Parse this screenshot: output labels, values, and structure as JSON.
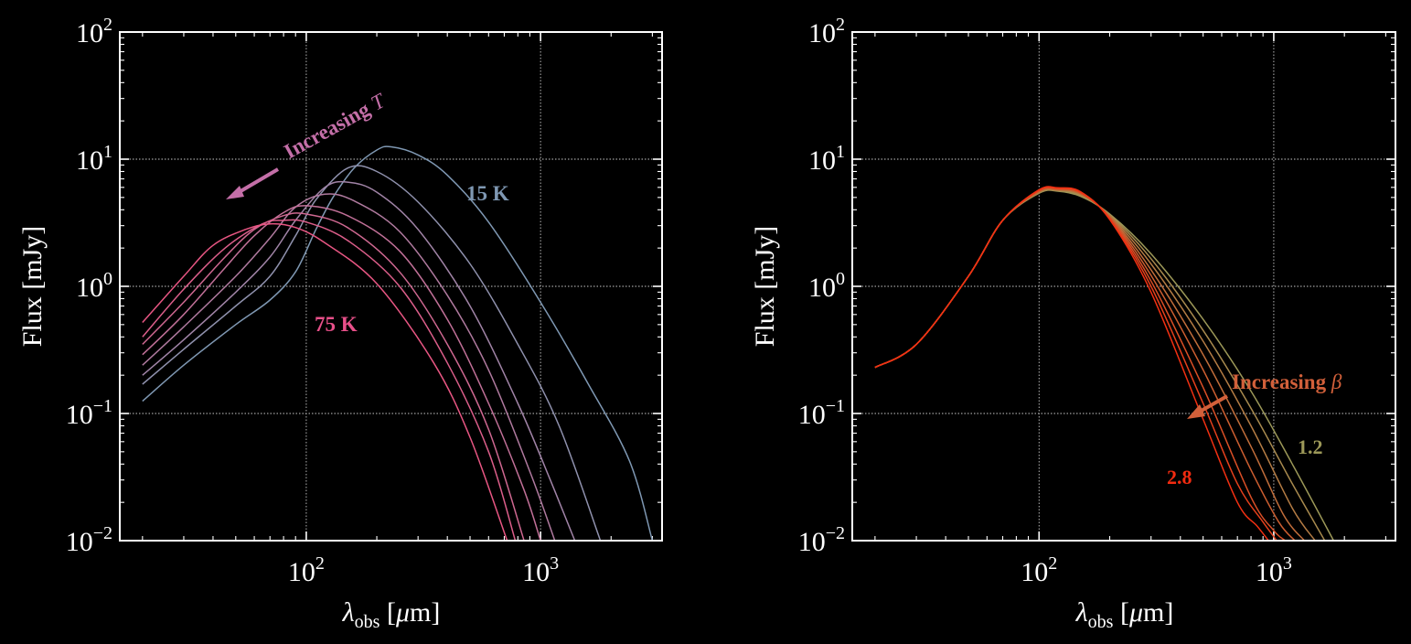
{
  "chart_data": [
    {
      "type": "line",
      "xlabel": "λobs [μm]",
      "ylabel": "Flux [mJy]",
      "xscale": "log",
      "yscale": "log",
      "xlim": [
        16,
        3300
      ],
      "ylim": [
        0.01,
        100
      ],
      "grid": true,
      "x_ticks": [
        {
          "value": 100,
          "base": "10",
          "exp": "2"
        },
        {
          "value": 1000,
          "base": "10",
          "exp": "3"
        }
      ],
      "y_ticks": [
        {
          "value": 100,
          "base": "10",
          "exp": "2"
        },
        {
          "value": 10,
          "base": "10",
          "exp": "1"
        },
        {
          "value": 1,
          "base": "10",
          "exp": "0"
        },
        {
          "value": 0.1,
          "base": "10",
          "exp": "−1"
        },
        {
          "value": 0.01,
          "base": "10",
          "exp": "−2"
        }
      ],
      "series": [
        {
          "color": "#7f98b3",
          "x": [
            20,
            30,
            50,
            70,
            90,
            110,
            130,
            160,
            200,
            230,
            300,
            400,
            600,
            1000,
            1600,
            2400,
            3000
          ],
          "y": [
            0.125,
            0.24,
            0.5,
            0.78,
            1.3,
            2.8,
            5.0,
            8.5,
            11.8,
            12.5,
            10.8,
            7.5,
            3.2,
            0.75,
            0.17,
            0.042,
            0.01
          ]
        },
        {
          "color": "#8f91ad",
          "x": [
            20,
            30,
            50,
            70,
            90,
            110,
            150,
            200,
            300,
            500,
            800,
            1200,
            1800
          ],
          "y": [
            0.17,
            0.32,
            0.7,
            1.2,
            2.5,
            4.8,
            8.5,
            8.0,
            4.6,
            1.5,
            0.35,
            0.08,
            0.01
          ]
        },
        {
          "color": "#a184a7",
          "x": [
            20,
            30,
            50,
            70,
            90,
            120,
            150,
            200,
            300,
            500,
            800,
            1100,
            1400
          ],
          "y": [
            0.2,
            0.38,
            0.9,
            1.7,
            3.3,
            6.0,
            6.6,
            5.5,
            2.8,
            0.7,
            0.12,
            0.03,
            0.01
          ]
        },
        {
          "color": "#b07a9f",
          "x": [
            20,
            30,
            50,
            70,
            90,
            120,
            160,
            250,
            400,
            600,
            900,
            1150
          ],
          "y": [
            0.24,
            0.48,
            1.2,
            2.4,
            4.2,
            5.3,
            4.7,
            2.7,
            0.85,
            0.22,
            0.035,
            0.01
          ]
        },
        {
          "color": "#c17098",
          "x": [
            20,
            30,
            45,
            60,
            80,
            100,
            150,
            250,
            400,
            600,
            850,
            1000
          ],
          "y": [
            0.29,
            0.6,
            1.4,
            2.5,
            3.8,
            4.3,
            3.6,
            1.9,
            0.55,
            0.12,
            0.025,
            0.01
          ]
        },
        {
          "color": "#cf6891",
          "x": [
            20,
            30,
            45,
            60,
            80,
            100,
            150,
            250,
            400,
            600,
            850
          ],
          "y": [
            0.35,
            0.75,
            1.7,
            2.8,
            3.6,
            3.7,
            2.9,
            1.3,
            0.35,
            0.075,
            0.01
          ]
        },
        {
          "color": "#dc5e8a",
          "x": [
            20,
            30,
            45,
            65,
            80,
            100,
            150,
            250,
            400,
            600,
            780
          ],
          "y": [
            0.4,
            0.95,
            2.0,
            3.1,
            3.3,
            3.2,
            2.3,
            1.0,
            0.25,
            0.05,
            0.01
          ]
        },
        {
          "color": "#e85683",
          "x": [
            20,
            30,
            40,
            55,
            70,
            90,
            120,
            200,
            350,
            500,
            720
          ],
          "y": [
            0.52,
            1.2,
            2.1,
            2.8,
            3.1,
            2.9,
            2.2,
            1.05,
            0.25,
            0.065,
            0.01
          ]
        }
      ],
      "annotations": [
        {
          "text": "Increasing ",
          "math": "T",
          "color": "#c46fa8"
        },
        {
          "text": "15 K",
          "color": "#7f98b3"
        },
        {
          "text": "75 K",
          "color": "#e8508a"
        }
      ]
    },
    {
      "type": "line",
      "xlabel": "λobs [μm]",
      "ylabel": "Flux [mJy]",
      "xscale": "log",
      "yscale": "log",
      "xlim": [
        16,
        3300
      ],
      "ylim": [
        0.01,
        100
      ],
      "grid": true,
      "x_ticks": [
        {
          "value": 100,
          "base": "10",
          "exp": "2"
        },
        {
          "value": 1000,
          "base": "10",
          "exp": "3"
        }
      ],
      "y_ticks": [
        {
          "value": 100,
          "base": "10",
          "exp": "2"
        },
        {
          "value": 10,
          "base": "10",
          "exp": "1"
        },
        {
          "value": 1,
          "base": "10",
          "exp": "0"
        },
        {
          "value": 0.1,
          "base": "10",
          "exp": "−1"
        },
        {
          "value": 0.01,
          "base": "10",
          "exp": "−2"
        }
      ],
      "series": [
        {
          "color": "#9c9858",
          "x": [
            20,
            30,
            50,
            70,
            100,
            120,
            150,
            200,
            300,
            500,
            800,
            1200,
            1800
          ],
          "y": [
            0.23,
            0.35,
            1.2,
            3.3,
            5.4,
            5.6,
            5.1,
            3.7,
            1.8,
            0.55,
            0.15,
            0.04,
            0.01
          ]
        },
        {
          "color": "#a88a4e",
          "x": [
            20,
            30,
            50,
            70,
            100,
            120,
            150,
            200,
            300,
            500,
            800,
            1200,
            1650
          ],
          "y": [
            0.23,
            0.35,
            1.2,
            3.3,
            5.45,
            5.65,
            5.2,
            3.65,
            1.65,
            0.45,
            0.11,
            0.028,
            0.01
          ]
        },
        {
          "color": "#b47c44",
          "x": [
            20,
            30,
            50,
            70,
            100,
            120,
            150,
            200,
            300,
            500,
            800,
            1200,
            1500
          ],
          "y": [
            0.23,
            0.35,
            1.2,
            3.3,
            5.5,
            5.7,
            5.3,
            3.6,
            1.5,
            0.37,
            0.08,
            0.018,
            0.01
          ]
        },
        {
          "color": "#c16d3a",
          "x": [
            20,
            30,
            50,
            70,
            100,
            120,
            150,
            200,
            300,
            500,
            800,
            1100,
            1350
          ],
          "y": [
            0.23,
            0.35,
            1.2,
            3.3,
            5.55,
            5.75,
            5.35,
            3.55,
            1.35,
            0.29,
            0.055,
            0.016,
            0.01
          ]
        },
        {
          "color": "#cd5e30",
          "x": [
            20,
            30,
            50,
            70,
            100,
            120,
            150,
            200,
            300,
            500,
            800,
            1050,
            1230
          ],
          "y": [
            0.23,
            0.35,
            1.2,
            3.3,
            5.6,
            5.8,
            5.4,
            3.5,
            1.22,
            0.22,
            0.036,
            0.014,
            0.01
          ]
        },
        {
          "color": "#da4f26",
          "x": [
            20,
            30,
            50,
            70,
            100,
            120,
            150,
            200,
            300,
            500,
            800,
            1000,
            1120
          ],
          "y": [
            0.23,
            0.35,
            1.2,
            3.3,
            5.65,
            5.85,
            5.45,
            3.45,
            1.1,
            0.16,
            0.022,
            0.012,
            0.01
          ]
        },
        {
          "color": "#e6401c",
          "x": [
            20,
            30,
            50,
            70,
            100,
            120,
            150,
            200,
            300,
            500,
            700,
            900,
            1030
          ],
          "y": [
            0.23,
            0.35,
            1.2,
            3.3,
            5.7,
            5.9,
            5.5,
            3.4,
            1.0,
            0.12,
            0.028,
            0.014,
            0.01
          ]
        },
        {
          "color": "#f33012",
          "x": [
            20,
            30,
            50,
            70,
            100,
            120,
            150,
            200,
            300,
            500,
            700,
            850,
            950
          ],
          "y": [
            0.23,
            0.35,
            1.2,
            3.3,
            5.75,
            5.95,
            5.55,
            3.35,
            0.9,
            0.09,
            0.02,
            0.013,
            0.01
          ]
        }
      ],
      "annotations": [
        {
          "text": "Increasing ",
          "math": "β",
          "color": "#d2603a"
        },
        {
          "text": "1.2",
          "color": "#9c9858"
        },
        {
          "text": "2.8",
          "color": "#f22b10"
        }
      ]
    }
  ]
}
